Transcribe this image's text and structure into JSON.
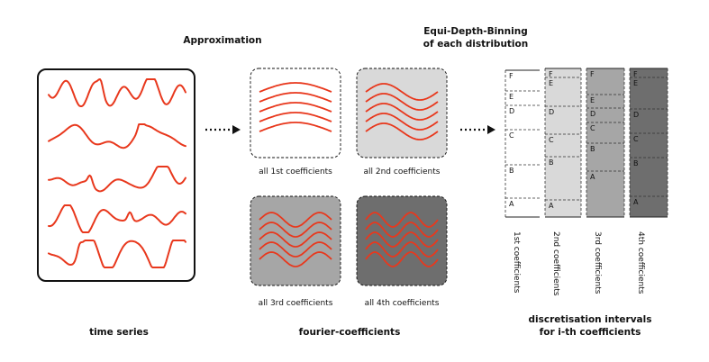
{
  "labels": {
    "approximation": "Approximation",
    "equi_depth_line1": "Equi-Depth-Binning",
    "equi_depth_line2": "of each distribution",
    "time_series": "time series",
    "fourier_coefficients": "fourier-coefficients",
    "discretisation_line1": "discretisation intervals",
    "discretisation_line2": "for i-th coefficients"
  },
  "coefficient_panels": [
    {
      "label": "all 1st coefficients",
      "background": "#ffffff"
    },
    {
      "label": "all 2nd coefficients",
      "background": "#d9d9d9"
    },
    {
      "label": "all 3rd coefficients",
      "background": "#a6a6a6"
    },
    {
      "label": "all 4th coefficients",
      "background": "#6e6e6e"
    }
  ],
  "bin_columns": [
    {
      "label": "1st coefficients",
      "background": "#ffffff",
      "letters": [
        "F",
        "E",
        "D",
        "C",
        "B",
        "A"
      ]
    },
    {
      "label": "2nd coefficients",
      "background": "#d9d9d9",
      "letters": [
        "F",
        "E",
        "D",
        "C",
        "B",
        "A"
      ]
    },
    {
      "label": "3rd coefficients",
      "background": "#a6a6a6",
      "letters": [
        "F",
        "E",
        "D",
        "C",
        "B",
        "A"
      ]
    },
    {
      "label": "4th coefficients",
      "background": "#6e6e6e",
      "letters": [
        "F",
        "E",
        "D",
        "C",
        "B",
        "A"
      ]
    }
  ],
  "colors": {
    "curve": "#e8381d",
    "outline": "#111111",
    "arrow": "#111111"
  }
}
